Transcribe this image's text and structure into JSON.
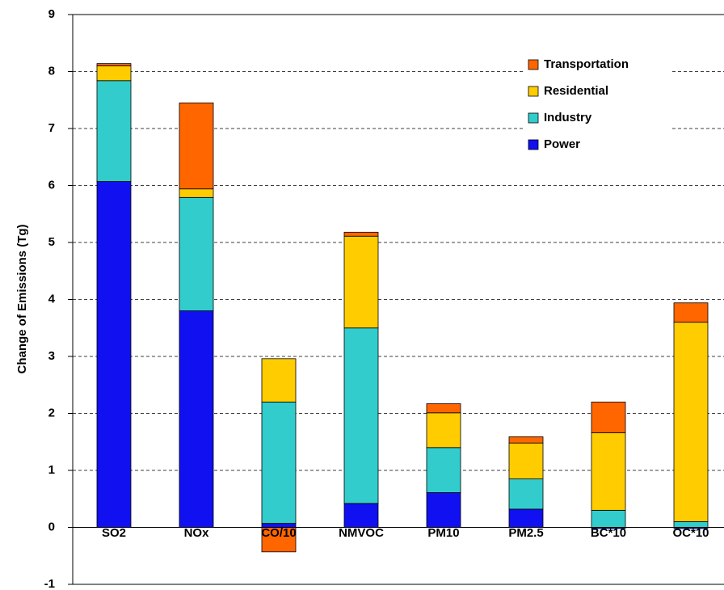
{
  "chart_data": {
    "type": "stacked-bar",
    "y_label": "Change of Emissions (Tg)",
    "categories": [
      "SO2",
      "NOx",
      "CO/10",
      "NMVOC",
      "PM10",
      "PM2.5",
      "BC*10",
      "OC*10"
    ],
    "series": [
      {
        "name": "Power",
        "color": "#1010f0",
        "values": [
          6.07,
          3.8,
          0.07,
          0.42,
          0.61,
          0.32,
          -0.02,
          -0.02
        ]
      },
      {
        "name": "Industry",
        "color": "#33cccc",
        "values": [
          1.77,
          1.99,
          2.13,
          3.08,
          0.79,
          0.53,
          0.3,
          0.1
        ]
      },
      {
        "name": "Residential",
        "color": "#ffcc00",
        "values": [
          0.26,
          0.15,
          0.76,
          1.61,
          0.61,
          0.63,
          1.36,
          3.5
        ]
      },
      {
        "name": "Transportation",
        "color": "#ff6600",
        "values": [
          0.04,
          1.51,
          -0.43,
          0.07,
          0.16,
          0.11,
          0.54,
          0.34
        ]
      }
    ],
    "ylim": [
      -1,
      9
    ],
    "yticks": [
      -1,
      0,
      1,
      2,
      3,
      4,
      5,
      6,
      7,
      8,
      9
    ],
    "grid": true,
    "legend": "upper right"
  }
}
